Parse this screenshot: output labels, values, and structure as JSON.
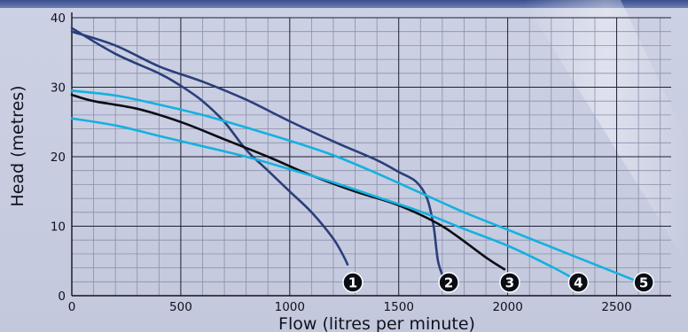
{
  "chart_data": {
    "type": "line",
    "title": "",
    "xlabel": "Flow (litres per minute)",
    "ylabel": "Head (metres)",
    "xlim": [
      0,
      2750
    ],
    "ylim": [
      0,
      40
    ],
    "x_ticks": [
      0,
      500,
      1000,
      1500,
      2000,
      2500
    ],
    "y_ticks": [
      0,
      10,
      20,
      30,
      40
    ],
    "grid": true,
    "series": [
      {
        "name": "1",
        "color": "#2a3f7a",
        "points": [
          [
            0,
            38.5
          ],
          [
            200,
            34.8
          ],
          [
            400,
            32
          ],
          [
            500,
            30.2
          ],
          [
            600,
            28
          ],
          [
            700,
            25
          ],
          [
            800,
            21
          ],
          [
            900,
            18
          ],
          [
            1000,
            15
          ],
          [
            1100,
            12
          ],
          [
            1200,
            8.2
          ],
          [
            1250,
            5.5
          ],
          [
            1265,
            4.5
          ]
        ]
      },
      {
        "name": "2",
        "color": "#2a3f7a",
        "points": [
          [
            0,
            38
          ],
          [
            200,
            36
          ],
          [
            400,
            33
          ],
          [
            600,
            30.8
          ],
          [
            800,
            28.2
          ],
          [
            1000,
            25.1
          ],
          [
            1200,
            22.2
          ],
          [
            1400,
            19.5
          ],
          [
            1500,
            17.8
          ],
          [
            1580,
            16.4
          ],
          [
            1630,
            14
          ],
          [
            1660,
            10
          ],
          [
            1680,
            5
          ],
          [
            1705,
            2.6
          ]
        ]
      },
      {
        "name": "3",
        "color": "#0b0d14",
        "points": [
          [
            0,
            28.9
          ],
          [
            100,
            28
          ],
          [
            300,
            26.9
          ],
          [
            500,
            25
          ],
          [
            700,
            22.5
          ],
          [
            900,
            20
          ],
          [
            1100,
            17.3
          ],
          [
            1300,
            15
          ],
          [
            1500,
            13
          ],
          [
            1700,
            10
          ],
          [
            1900,
            5.5
          ],
          [
            1985,
            3.8
          ]
        ]
      },
      {
        "name": "4",
        "color": "#14b1e0",
        "points": [
          [
            0,
            25.5
          ],
          [
            200,
            24.5
          ],
          [
            400,
            23
          ],
          [
            600,
            21.5
          ],
          [
            800,
            20
          ],
          [
            1000,
            18.2
          ],
          [
            1200,
            16.3
          ],
          [
            1400,
            14.2
          ],
          [
            1600,
            12.1
          ],
          [
            1800,
            9.6
          ],
          [
            2000,
            7.2
          ],
          [
            2200,
            4.2
          ],
          [
            2300,
            2.5
          ]
        ]
      },
      {
        "name": "5",
        "color": "#14b1e0",
        "points": [
          [
            0,
            29.5
          ],
          [
            200,
            28.8
          ],
          [
            400,
            27.5
          ],
          [
            600,
            26
          ],
          [
            800,
            24.2
          ],
          [
            1000,
            22.3
          ],
          [
            1200,
            20.2
          ],
          [
            1400,
            17.6
          ],
          [
            1600,
            14.8
          ],
          [
            1800,
            12
          ],
          [
            2000,
            9.5
          ],
          [
            2200,
            7
          ],
          [
            2400,
            4.5
          ],
          [
            2600,
            2
          ]
        ]
      }
    ]
  }
}
